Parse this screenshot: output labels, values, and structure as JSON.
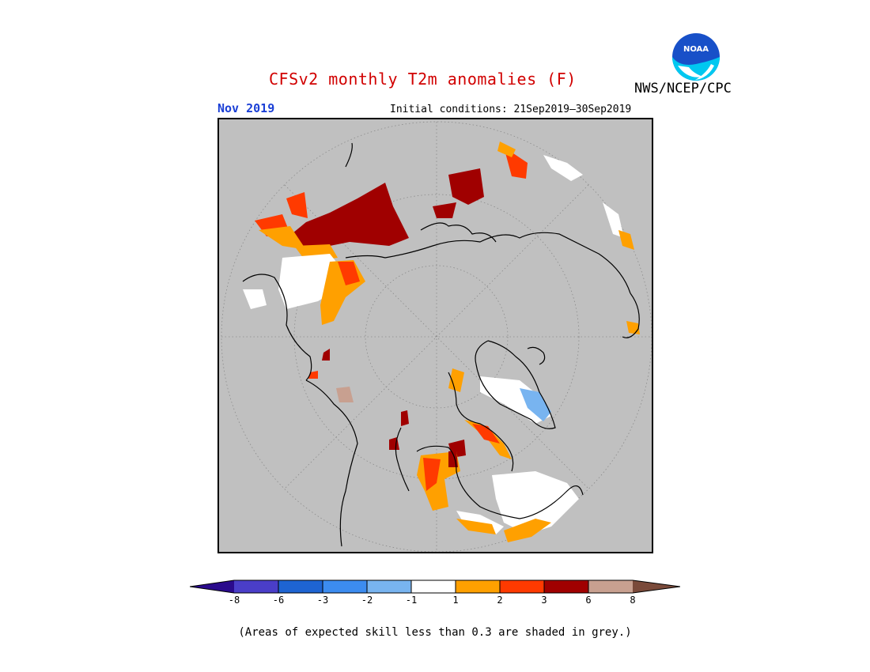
{
  "header": {
    "title": "CFSv2 monthly T2m anomalies (F)",
    "agency": "NWS/NCEP/CPC",
    "month": "Nov 2019",
    "initial_conditions": "Initial conditions: 21Sep2019–30Sep2019",
    "logo_text": "NOAA"
  },
  "legend": {
    "labels": [
      "-8",
      "-6",
      "-3",
      "-2",
      "-1",
      "1",
      "2",
      "3",
      "6",
      "8"
    ],
    "colors": [
      "#2a0a8c",
      "#4a3ec8",
      "#1e64d2",
      "#3c8cf0",
      "#78b4f0",
      "#ffffff",
      "#ffa000",
      "#ff3a00",
      "#a00000",
      "#c8a090",
      "#7a4a3a"
    ]
  },
  "footnote": "(Areas of expected skill less than 0.3 are shaded in grey.)",
  "colors": {
    "grey": "#c0c0c0",
    "title": "#d10000",
    "month": "#1a3fd6"
  }
}
